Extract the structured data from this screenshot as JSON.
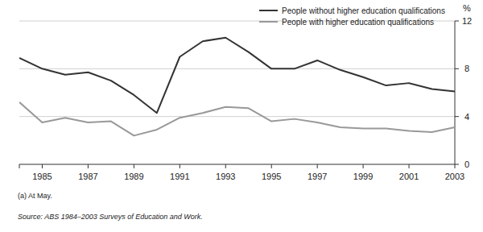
{
  "chart_data": {
    "type": "line",
    "ylabel": "%",
    "footnote": "(a) At May.",
    "source": "Source: ABS 1984–2003 Surveys of Education and Work.",
    "x": [
      1984,
      1985,
      1986,
      1987,
      1988,
      1989,
      1990,
      1991,
      1992,
      1993,
      1994,
      1995,
      1996,
      1997,
      1998,
      1999,
      2000,
      2001,
      2002,
      2003
    ],
    "series": [
      {
        "name": "People without higher education qualifications",
        "color": "#333333",
        "values": [
          8.9,
          8.0,
          7.5,
          7.7,
          7.0,
          5.8,
          4.3,
          9.0,
          10.3,
          10.6,
          9.4,
          8.0,
          8.0,
          8.7,
          7.9,
          7.3,
          6.6,
          6.8,
          6.3,
          6.1
        ]
      },
      {
        "name": "People with higher education qualifications",
        "color": "#999999",
        "values": [
          5.2,
          3.5,
          3.9,
          3.5,
          3.6,
          2.4,
          2.9,
          3.9,
          4.3,
          4.8,
          4.7,
          3.6,
          3.8,
          3.5,
          3.1,
          3.0,
          3.0,
          2.8,
          2.7,
          3.1
        ]
      }
    ],
    "xlim": [
      1984,
      2003
    ],
    "xticks": [
      1985,
      1987,
      1989,
      1991,
      1993,
      1995,
      1997,
      1999,
      2001,
      2003
    ],
    "ylim": [
      0,
      12
    ],
    "yticks": [
      0,
      4,
      8,
      12
    ],
    "grid": true,
    "legend": "top-right"
  }
}
